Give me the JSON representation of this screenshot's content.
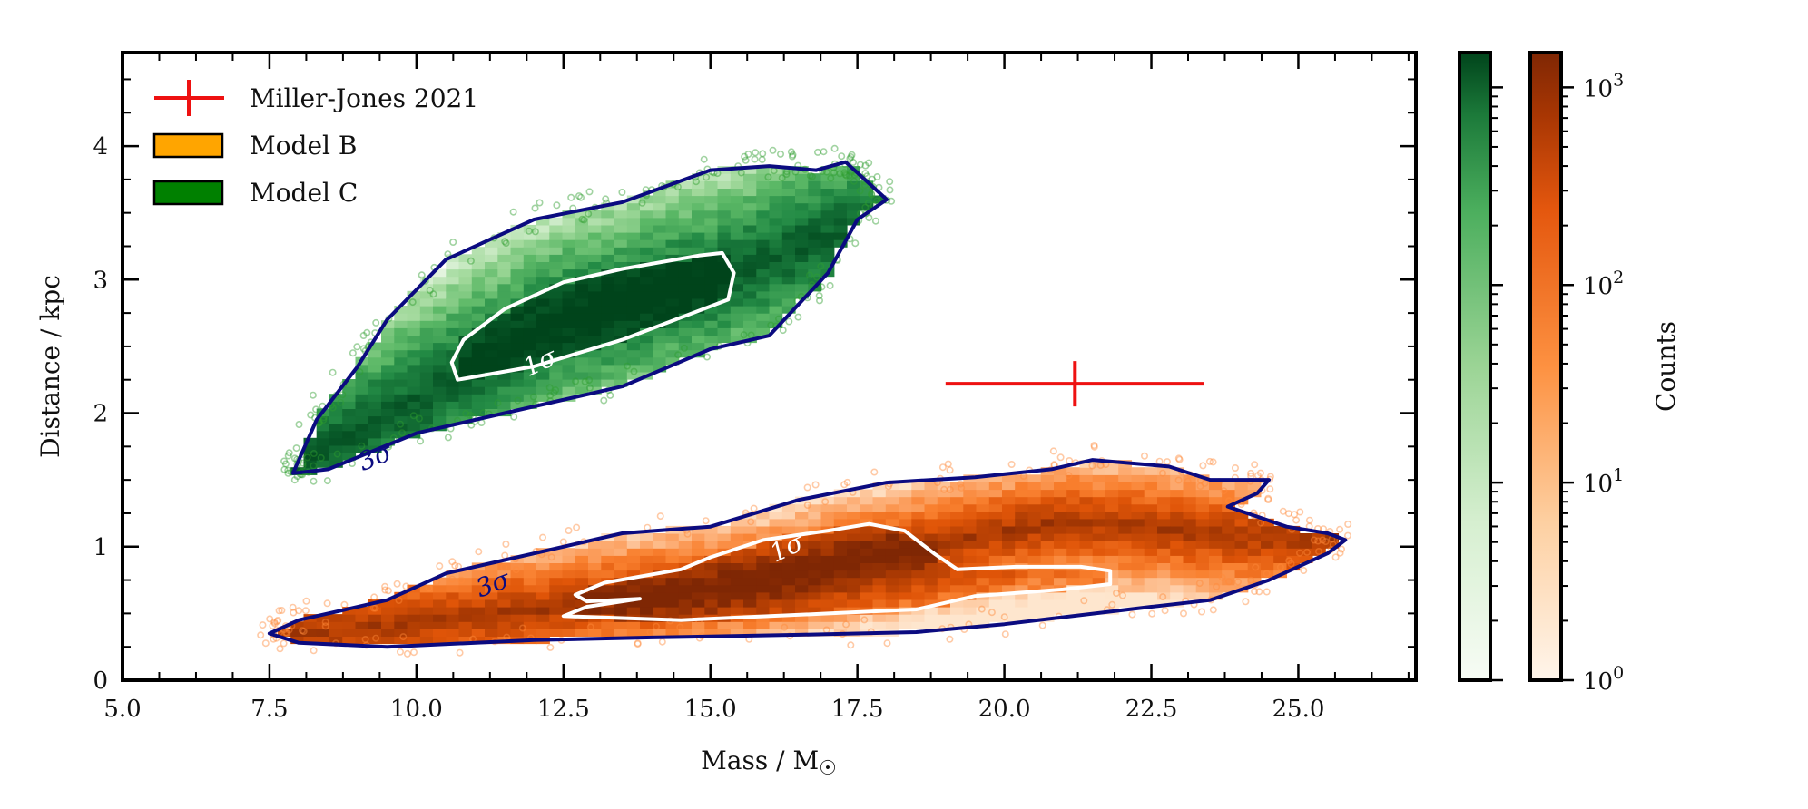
{
  "chart_data": {
    "type": "scatter",
    "title": "",
    "xlabel": "Mass / M☉",
    "ylabel": "Distance / kpc",
    "xlim": [
      5.0,
      27.0
    ],
    "ylim": [
      0,
      4.7
    ],
    "x_ticks": [
      5.0,
      7.5,
      10.0,
      12.5,
      15.0,
      17.5,
      20.0,
      22.5,
      25.0
    ],
    "x_tick_labels": [
      "5.0",
      "7.5",
      "10.0",
      "12.5",
      "15.0",
      "17.5",
      "20.0",
      "22.5",
      "25.0"
    ],
    "y_ticks": [
      0,
      1,
      2,
      3,
      4
    ],
    "y_tick_labels": [
      "0",
      "1",
      "2",
      "3",
      "4"
    ],
    "grid": false,
    "legend_position": "top-left",
    "legend": [
      {
        "label": "Miller-Jones 2021",
        "color": "#ee1111",
        "marker": "errorbar"
      },
      {
        "label": "Model B",
        "color": "#ffa500",
        "marker": "patch"
      },
      {
        "label": "Model C",
        "color": "#008000",
        "marker": "patch"
      }
    ],
    "measurement": {
      "name": "Miller-Jones 2021",
      "mass": 21.2,
      "mass_err": [
        2.2,
        2.2
      ],
      "distance": 2.22,
      "distance_err": [
        0.17,
        0.17
      ],
      "color": "#ee1111"
    },
    "series": [
      {
        "name": "Model C",
        "colormap": "Greens",
        "core_ridge": [
          [
            8.0,
            1.62
          ],
          [
            10.0,
            2.1
          ],
          [
            12.5,
            2.7
          ],
          [
            15.0,
            3.0
          ],
          [
            17.5,
            3.4
          ]
        ],
        "sigma_levels": [
          {
            "label": "1σ",
            "color": "#ffffff",
            "contour": [
              [
                10.7,
                2.25
              ],
              [
                12.0,
                2.35
              ],
              [
                13.5,
                2.55
              ],
              [
                15.3,
                2.85
              ],
              [
                15.4,
                3.05
              ],
              [
                15.2,
                3.2
              ],
              [
                14.8,
                3.18
              ],
              [
                13.5,
                3.08
              ],
              [
                12.5,
                2.98
              ],
              [
                11.5,
                2.78
              ],
              [
                10.8,
                2.55
              ],
              [
                10.6,
                2.38
              ],
              [
                10.7,
                2.25
              ]
            ]
          },
          {
            "label": "3σ",
            "color": "#0b0b80",
            "contour": [
              [
                7.9,
                1.55
              ],
              [
                8.5,
                1.58
              ],
              [
                10.0,
                1.85
              ],
              [
                11.5,
                2.0
              ],
              [
                13.5,
                2.2
              ],
              [
                15.0,
                2.48
              ],
              [
                16.0,
                2.58
              ],
              [
                17.0,
                3.05
              ],
              [
                17.5,
                3.45
              ],
              [
                18.0,
                3.6
              ],
              [
                17.5,
                3.8
              ],
              [
                17.3,
                3.88
              ],
              [
                16.8,
                3.82
              ],
              [
                16.0,
                3.85
              ],
              [
                15.0,
                3.82
              ],
              [
                13.5,
                3.58
              ],
              [
                12.0,
                3.45
              ],
              [
                10.5,
                3.15
              ],
              [
                9.5,
                2.7
              ],
              [
                9.0,
                2.35
              ],
              [
                8.3,
                1.95
              ],
              [
                7.9,
                1.55
              ]
            ]
          }
        ],
        "outlier_color": "#2e9e2e"
      },
      {
        "name": "Model B",
        "colormap": "Oranges",
        "core_ridge": [
          [
            8.0,
            0.35
          ],
          [
            12.5,
            0.55
          ],
          [
            16.0,
            0.75
          ],
          [
            18.0,
            0.95
          ],
          [
            21.0,
            1.2
          ],
          [
            25.0,
            1.05
          ]
        ],
        "sigma_levels": [
          {
            "label": "1σ",
            "color": "#ffffff",
            "contour": [
              [
                12.5,
                0.48
              ],
              [
                14.5,
                0.45
              ],
              [
                17.0,
                0.5
              ],
              [
                18.5,
                0.53
              ],
              [
                19.5,
                0.63
              ],
              [
                21.0,
                0.68
              ],
              [
                21.8,
                0.72
              ],
              [
                21.8,
                0.82
              ],
              [
                21.3,
                0.85
              ],
              [
                20.2,
                0.85
              ],
              [
                19.2,
                0.83
              ],
              [
                18.8,
                0.95
              ],
              [
                18.3,
                1.12
              ],
              [
                17.7,
                1.17
              ],
              [
                17.0,
                1.12
              ],
              [
                15.9,
                1.05
              ],
              [
                15.0,
                0.92
              ],
              [
                14.5,
                0.83
              ],
              [
                13.2,
                0.73
              ],
              [
                12.7,
                0.64
              ],
              [
                12.9,
                0.59
              ],
              [
                13.8,
                0.61
              ],
              [
                12.9,
                0.55
              ],
              [
                12.5,
                0.48
              ]
            ]
          },
          {
            "label": "3σ",
            "color": "#0b0b80",
            "contour": [
              [
                7.5,
                0.35
              ],
              [
                8.0,
                0.28
              ],
              [
                9.5,
                0.25
              ],
              [
                12.0,
                0.3
              ],
              [
                14.0,
                0.32
              ],
              [
                16.5,
                0.34
              ],
              [
                18.5,
                0.36
              ],
              [
                20.0,
                0.42
              ],
              [
                22.5,
                0.55
              ],
              [
                23.5,
                0.6
              ],
              [
                24.5,
                0.75
              ],
              [
                25.5,
                0.95
              ],
              [
                25.8,
                1.05
              ],
              [
                25.5,
                1.1
              ],
              [
                24.8,
                1.15
              ],
              [
                23.8,
                1.3
              ],
              [
                24.3,
                1.4
              ],
              [
                24.5,
                1.5
              ],
              [
                23.5,
                1.5
              ],
              [
                22.8,
                1.6
              ],
              [
                21.5,
                1.65
              ],
              [
                20.8,
                1.58
              ],
              [
                19.5,
                1.52
              ],
              [
                18.0,
                1.48
              ],
              [
                16.5,
                1.35
              ],
              [
                15.0,
                1.15
              ],
              [
                13.5,
                1.1
              ],
              [
                12.5,
                1.0
              ],
              [
                11.5,
                0.9
              ],
              [
                10.5,
                0.8
              ],
              [
                9.5,
                0.6
              ],
              [
                8.0,
                0.45
              ],
              [
                7.5,
                0.35
              ]
            ]
          }
        ],
        "outlier_color": "#ff8a3a"
      }
    ],
    "colorbars": [
      {
        "name": "Model C",
        "colormap": "Greens",
        "scale": "log",
        "range": [
          1,
          1500
        ],
        "tick_labels": []
      },
      {
        "name": "Model B",
        "colormap": "Oranges",
        "scale": "log",
        "range": [
          1,
          1500
        ],
        "label": "Counts",
        "ticks": [
          1,
          10,
          100,
          1000
        ],
        "tick_labels": [
          {
            "base": "10",
            "exp": "0"
          },
          {
            "base": "10",
            "exp": "1"
          },
          {
            "base": "10",
            "exp": "2"
          },
          {
            "base": "10",
            "exp": "3"
          }
        ]
      }
    ]
  }
}
